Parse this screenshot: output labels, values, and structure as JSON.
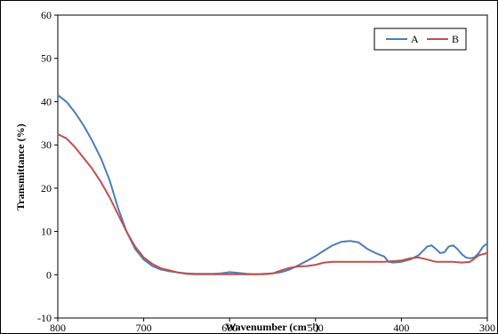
{
  "chart_data": {
    "type": "line",
    "xlabel": "Wavenumber (cm⁻¹)",
    "ylabel": "Transmittance (%)",
    "xlim": [
      800,
      300
    ],
    "ylim": [
      -10,
      60
    ],
    "x_ticks": [
      800,
      700,
      600,
      500,
      400,
      300
    ],
    "y_ticks": [
      -10,
      0,
      10,
      20,
      30,
      40,
      50,
      60
    ],
    "grid": false,
    "legend_position": "top-right",
    "series": [
      {
        "name": "A",
        "color": "#4a7ebb",
        "points": [
          [
            800,
            41.5
          ],
          [
            790,
            40
          ],
          [
            780,
            37.5
          ],
          [
            770,
            34.5
          ],
          [
            760,
            31
          ],
          [
            750,
            27
          ],
          [
            740,
            22
          ],
          [
            730,
            15.5
          ],
          [
            720,
            10
          ],
          [
            710,
            6
          ],
          [
            700,
            3.5
          ],
          [
            690,
            2
          ],
          [
            680,
            1.2
          ],
          [
            670,
            0.8
          ],
          [
            660,
            0.5
          ],
          [
            650,
            0.3
          ],
          [
            640,
            0.2
          ],
          [
            630,
            0.2
          ],
          [
            620,
            0.2
          ],
          [
            610,
            0.3
          ],
          [
            600,
            0.6
          ],
          [
            590,
            0.4
          ],
          [
            580,
            0.2
          ],
          [
            570,
            0.1
          ],
          [
            560,
            0.2
          ],
          [
            550,
            0.3
          ],
          [
            540,
            0.6
          ],
          [
            530,
            1.2
          ],
          [
            520,
            2.2
          ],
          [
            510,
            3.2
          ],
          [
            500,
            4.3
          ],
          [
            490,
            5.6
          ],
          [
            480,
            6.8
          ],
          [
            470,
            7.6
          ],
          [
            460,
            7.8
          ],
          [
            450,
            7.5
          ],
          [
            440,
            6.0
          ],
          [
            430,
            5.0
          ],
          [
            420,
            4.2
          ],
          [
            415,
            3.0
          ],
          [
            410,
            2.8
          ],
          [
            400,
            3.0
          ],
          [
            390,
            3.5
          ],
          [
            380,
            4.5
          ],
          [
            370,
            6.5
          ],
          [
            365,
            6.8
          ],
          [
            360,
            6.0
          ],
          [
            355,
            5.0
          ],
          [
            350,
            5.2
          ],
          [
            345,
            6.5
          ],
          [
            340,
            6.8
          ],
          [
            335,
            6.0
          ],
          [
            330,
            4.8
          ],
          [
            325,
            4.0
          ],
          [
            320,
            3.8
          ],
          [
            315,
            4.0
          ],
          [
            310,
            5.0
          ],
          [
            305,
            6.5
          ],
          [
            300,
            7.2
          ]
        ]
      },
      {
        "name": "B",
        "color": "#c0504d",
        "points": [
          [
            800,
            32.5
          ],
          [
            790,
            31.5
          ],
          [
            780,
            29.5
          ],
          [
            770,
            27
          ],
          [
            760,
            24.5
          ],
          [
            750,
            21.5
          ],
          [
            740,
            18
          ],
          [
            730,
            14
          ],
          [
            720,
            10
          ],
          [
            710,
            6.5
          ],
          [
            700,
            4
          ],
          [
            690,
            2.5
          ],
          [
            680,
            1.5
          ],
          [
            670,
            1
          ],
          [
            660,
            0.5
          ],
          [
            650,
            0.2
          ],
          [
            640,
            0.1
          ],
          [
            620,
            0.1
          ],
          [
            600,
            0.1
          ],
          [
            580,
            0.1
          ],
          [
            560,
            0.1
          ],
          [
            550,
            0.3
          ],
          [
            540,
            1.0
          ],
          [
            530,
            1.6
          ],
          [
            520,
            1.9
          ],
          [
            510,
            2.0
          ],
          [
            500,
            2.3
          ],
          [
            490,
            2.8
          ],
          [
            480,
            3.0
          ],
          [
            460,
            3.0
          ],
          [
            440,
            3.0
          ],
          [
            420,
            3.0
          ],
          [
            400,
            3.3
          ],
          [
            390,
            3.8
          ],
          [
            380,
            4.0
          ],
          [
            370,
            3.5
          ],
          [
            360,
            3.0
          ],
          [
            350,
            3.0
          ],
          [
            340,
            3.0
          ],
          [
            330,
            2.8
          ],
          [
            320,
            3.0
          ],
          [
            310,
            4.5
          ],
          [
            300,
            5.0
          ]
        ]
      }
    ]
  }
}
